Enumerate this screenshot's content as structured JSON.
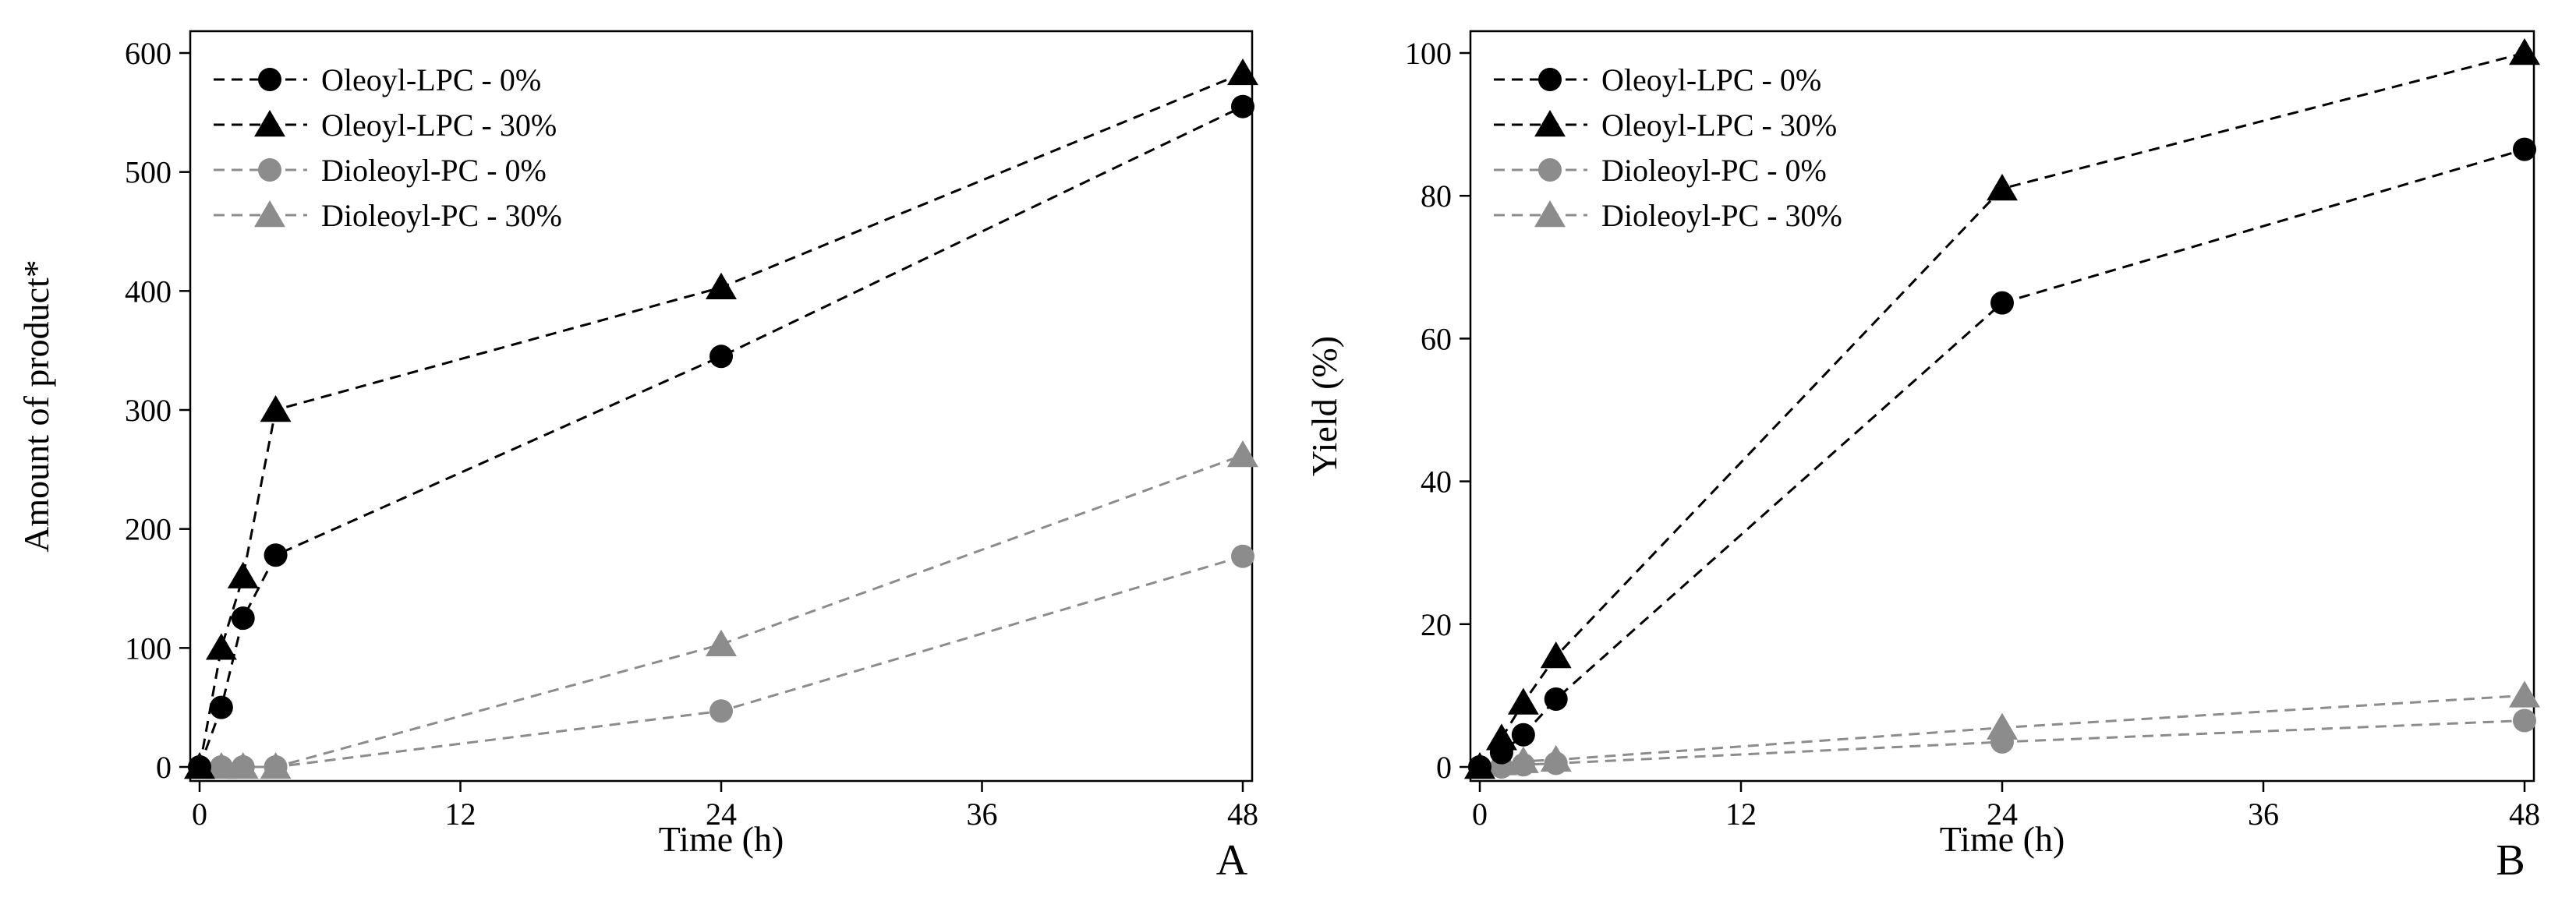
{
  "chart_data": [
    {
      "panel": "A",
      "type": "line",
      "title": "",
      "xlabel": "Time (h)",
      "ylabel": "Amount of product*",
      "xlim": [
        0,
        48
      ],
      "ylim": [
        0,
        600
      ],
      "xticks": [
        0,
        12,
        24,
        36,
        48
      ],
      "yticks": [
        0,
        100,
        200,
        300,
        400,
        500,
        600
      ],
      "legend_position": "top-left",
      "series": [
        {
          "name": "Oleoyl-LPC - 0%",
          "color": "#000000",
          "marker": "circle",
          "x": [
            0,
            1,
            2,
            3.5,
            24,
            48
          ],
          "values": [
            0,
            50,
            125,
            178,
            345,
            555
          ]
        },
        {
          "name": "Oleoyl-LPC - 30%",
          "color": "#000000",
          "marker": "triangle",
          "x": [
            0,
            1,
            2,
            3.5,
            24,
            48
          ],
          "values": [
            0,
            100,
            160,
            300,
            403,
            583
          ]
        },
        {
          "name": "Dioleoyl-PC - 0%",
          "color": "#8c8c8c",
          "marker": "circle",
          "x": [
            0,
            1,
            2,
            3.5,
            24,
            48
          ],
          "values": [
            0,
            0,
            0,
            0,
            47,
            177
          ]
        },
        {
          "name": "Dioleoyl-PC - 30%",
          "color": "#8c8c8c",
          "marker": "triangle",
          "x": [
            0,
            1,
            2,
            3.5,
            24,
            48
          ],
          "values": [
            0,
            0,
            0,
            0,
            103,
            262
          ]
        }
      ]
    },
    {
      "panel": "B",
      "type": "line",
      "title": "",
      "xlabel": "Time (h)",
      "ylabel": "Yield (%)",
      "xlim": [
        0,
        48
      ],
      "ylim": [
        0,
        100
      ],
      "xticks": [
        0,
        12,
        24,
        36,
        48
      ],
      "yticks": [
        0,
        20,
        40,
        60,
        80,
        100
      ],
      "legend_position": "top-left",
      "series": [
        {
          "name": "Oleoyl-LPC - 0%",
          "color": "#000000",
          "marker": "circle",
          "x": [
            0,
            1,
            2,
            3.5,
            24,
            48
          ],
          "values": [
            0,
            2,
            4.5,
            9.5,
            65,
            86.5
          ]
        },
        {
          "name": "Oleoyl-LPC - 30%",
          "color": "#000000",
          "marker": "triangle",
          "x": [
            0,
            1,
            2,
            3.5,
            24,
            48
          ],
          "values": [
            0,
            4,
            9,
            15.5,
            81,
            100
          ]
        },
        {
          "name": "Dioleoyl-PC - 0%",
          "color": "#8c8c8c",
          "marker": "circle",
          "x": [
            0,
            1,
            2,
            3.5,
            24,
            48
          ],
          "values": [
            0,
            0,
            0.3,
            0.5,
            3.5,
            6.5
          ]
        },
        {
          "name": "Dioleoyl-PC - 30%",
          "color": "#8c8c8c",
          "marker": "triangle",
          "x": [
            0,
            1,
            2,
            3.5,
            24,
            48
          ],
          "values": [
            0,
            0.5,
            0.8,
            1,
            5.5,
            10
          ]
        }
      ]
    }
  ]
}
